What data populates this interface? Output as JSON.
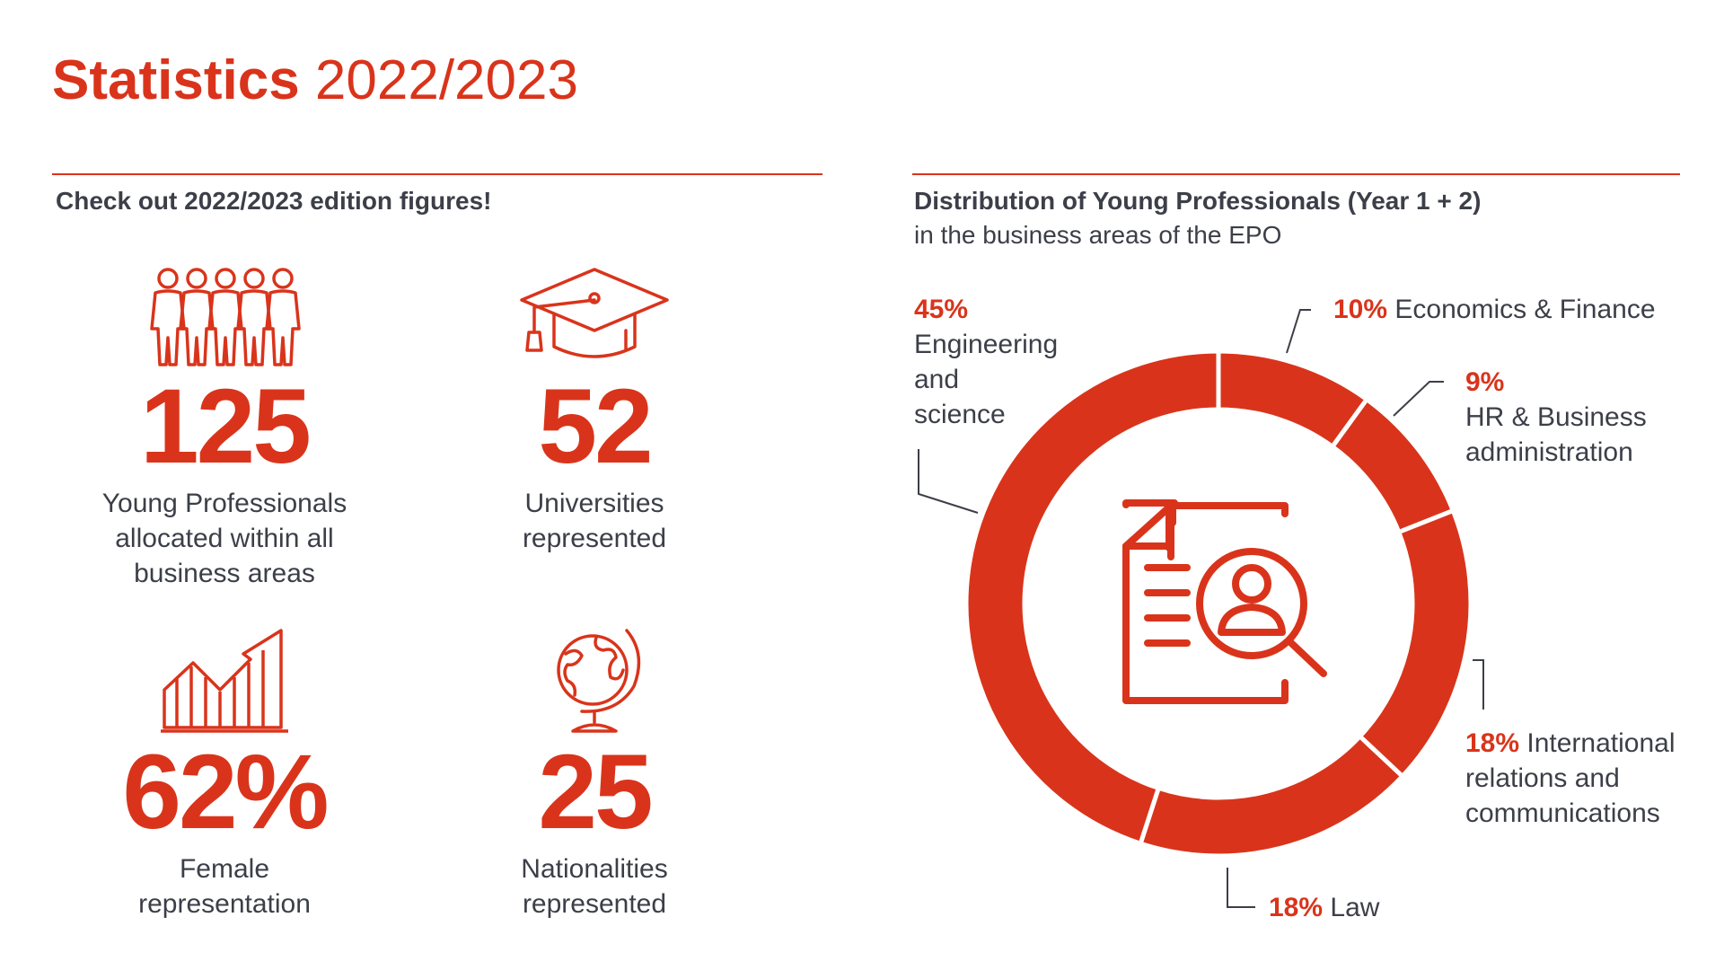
{
  "title": {
    "bold": "Statistics",
    "rest": "2022/2023"
  },
  "left_heading": "Check out 2022/2023 edition figures!",
  "stats": [
    {
      "value": "125",
      "label_lines": [
        "Young Professionals",
        "allocated within all",
        "business areas"
      ],
      "icon": "people-group-icon"
    },
    {
      "value": "52",
      "label_lines": [
        "Universities",
        "represented"
      ],
      "icon": "graduation-cap-icon"
    },
    {
      "value": "62%",
      "label_lines": [
        "Female",
        "representation"
      ],
      "icon": "growth-chart-icon"
    },
    {
      "value": "25",
      "label_lines": [
        "Nationalities",
        "represented"
      ],
      "icon": "globe-icon"
    }
  ],
  "chart_data": {
    "type": "pie",
    "style": "donut",
    "title": "Distribution of Young Professionals (Year 1 + 2)",
    "subtitle": "in the business areas of the EPO",
    "center_icon": "document-search-icon",
    "color": "#d9341b",
    "slices": [
      {
        "label": "Economics & Finance",
        "value": 10,
        "value_label": "10%",
        "label_lines": [
          "Economics & Finance"
        ]
      },
      {
        "label": "HR & Business administration",
        "value": 9,
        "value_label": "9%",
        "label_lines": [
          "HR & Business",
          "administration"
        ]
      },
      {
        "label": "International relations and communications",
        "value": 18,
        "value_label": "18%",
        "label_lines": [
          "International",
          "relations and",
          "communications"
        ]
      },
      {
        "label": "Law",
        "value": 18,
        "value_label": "18%",
        "label_lines": [
          "Law"
        ]
      },
      {
        "label": "Engineering and science",
        "value": 45,
        "value_label": "45%",
        "label_lines": [
          "Engineering",
          "and",
          "science"
        ]
      }
    ]
  }
}
